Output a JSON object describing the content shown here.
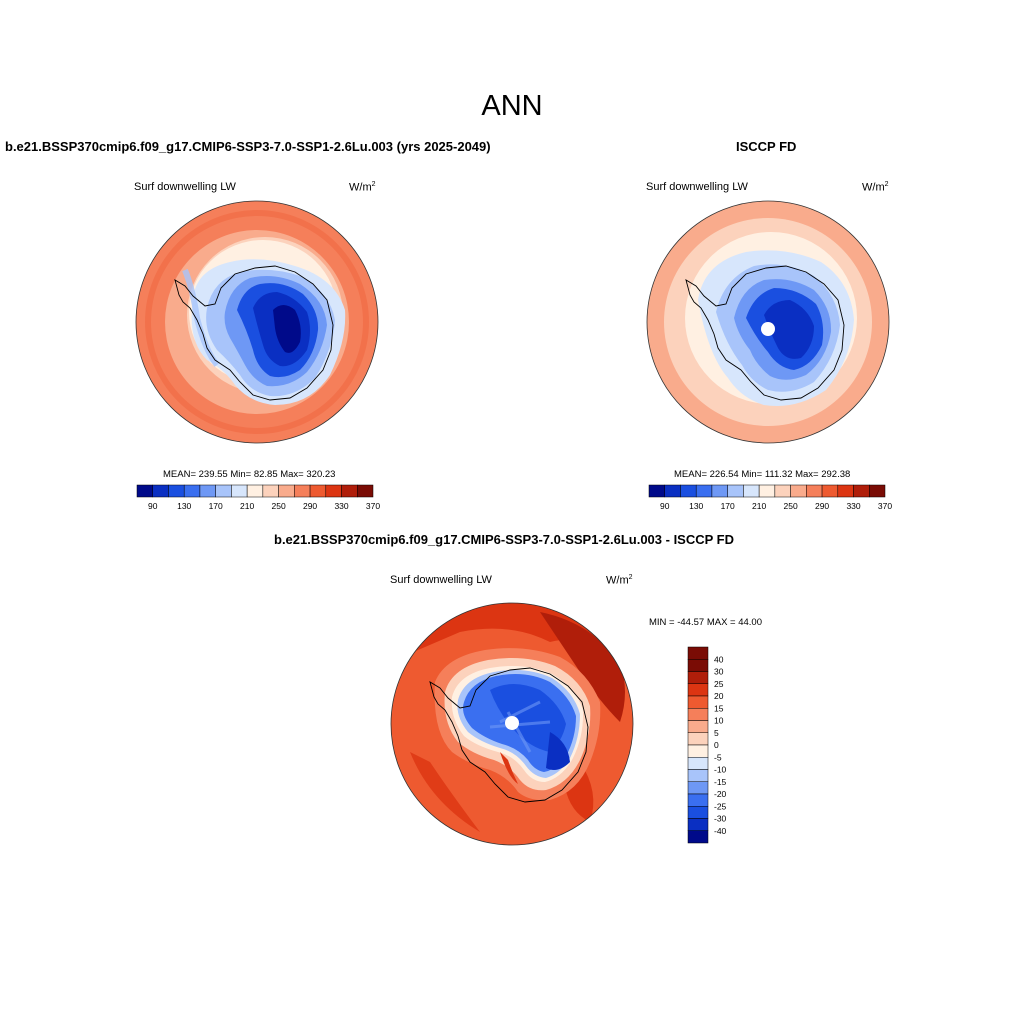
{
  "figure": {
    "title": "ANN",
    "colors": {
      "abs_scale": [
        "#000a8a",
        "#0a2fc2",
        "#1a4fe0",
        "#3a6ff0",
        "#6e98f5",
        "#a8c4fa",
        "#d7e6fc",
        "#fff0e2",
        "#fcd2bc",
        "#f9ab8c",
        "#f57f5a",
        "#ee5a30",
        "#dc3512",
        "#b01e0a",
        "#7a0c05"
      ],
      "diff_scale": [
        "#000a8a",
        "#0a2fc2",
        "#1a4fe0",
        "#3a6ff0",
        "#6e98f5",
        "#a8c4fa",
        "#d7e6fc",
        "#fff0e2",
        "#fcd2bc",
        "#f9ab8c",
        "#f57f5a",
        "#ee5a30",
        "#dc3512",
        "#b01e0a",
        "#7a0c05"
      ]
    }
  },
  "panels": [
    {
      "title": "b.e21.BSSP370cmip6.f09_g17.CMIP6-SSP3-7.0-SSP1-2.6Lu.003 (yrs 2025-2049)",
      "variable": "Surf downwelling LW",
      "units": "W/m",
      "units_exp": "2",
      "stats": "MEAN= 239.55  Min=  82.85  Max= 320.23",
      "colorbar_labels": [
        "90",
        "130",
        "170",
        "210",
        "250",
        "290",
        "330",
        "370"
      ]
    },
    {
      "title": "ISCCP FD",
      "variable": "Surf downwelling LW",
      "units": "W/m",
      "units_exp": "2",
      "stats": "MEAN= 226.54  Min= 111.32  Max= 292.38",
      "colorbar_labels": [
        "90",
        "130",
        "170",
        "210",
        "250",
        "290",
        "330",
        "370"
      ]
    },
    {
      "title": "b.e21.BSSP370cmip6.f09_g17.CMIP6-SSP3-7.0-SSP1-2.6Lu.003 - ISCCP FD",
      "variable": "Surf downwelling LW",
      "units": "W/m",
      "units_exp": "2",
      "minmax": "MIN = -44.57 MAX =  44.00",
      "colorbar_labels": [
        "40",
        "30",
        "25",
        "20",
        "15",
        "10",
        "5",
        "0",
        "-5",
        "-10",
        "-15",
        "-20",
        "-25",
        "-30",
        "-40"
      ]
    }
  ]
}
